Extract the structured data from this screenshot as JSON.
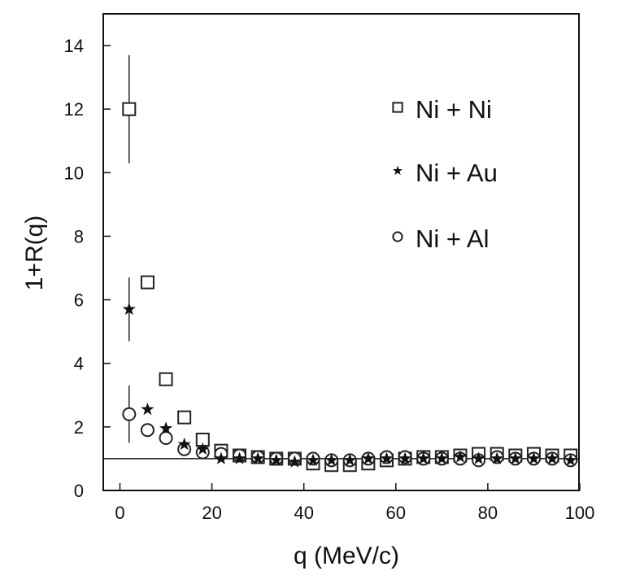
{
  "chart_data": {
    "type": "scatter",
    "xlabel": "q (MeV/c)",
    "ylabel": "1+R(q)",
    "xlim": [
      -5,
      100
    ],
    "ylim": [
      0,
      15
    ],
    "xticks": [
      "0",
      "20",
      "40",
      "60",
      "80",
      "100"
    ],
    "yticks": [
      "0",
      "2",
      "4",
      "6",
      "8",
      "10",
      "12",
      "14"
    ],
    "reference_line": 1,
    "legend_position": "top-right",
    "series": [
      {
        "name": "Ni + Ni",
        "marker": "square",
        "x": [
          2,
          6,
          10,
          14,
          18,
          22,
          26,
          30,
          34,
          38,
          42,
          46,
          50,
          54,
          58,
          62,
          66,
          70,
          74,
          78,
          82,
          86,
          90,
          94,
          98
        ],
        "y": [
          12.0,
          6.55,
          3.5,
          2.3,
          1.6,
          1.25,
          1.1,
          1.05,
          1.0,
          1.0,
          0.85,
          0.8,
          0.8,
          0.85,
          0.95,
          1.0,
          1.05,
          1.05,
          1.1,
          1.15,
          1.15,
          1.1,
          1.15,
          1.1,
          1.1
        ],
        "yerr": [
          1.7,
          0,
          0,
          0,
          0,
          0,
          0,
          0,
          0,
          0,
          0,
          0,
          0,
          0,
          0,
          0,
          0,
          0,
          0,
          0,
          0,
          0,
          0,
          0,
          0
        ]
      },
      {
        "name": "Ni + Au",
        "marker": "star",
        "x": [
          2,
          6,
          10,
          14,
          18,
          22,
          26,
          30,
          34,
          38,
          42,
          46,
          50,
          54,
          58,
          62,
          66,
          70,
          74,
          78,
          82,
          86,
          90,
          94,
          98
        ],
        "y": [
          5.7,
          2.55,
          1.95,
          1.45,
          1.3,
          1.0,
          1.0,
          1.0,
          0.95,
          0.9,
          0.95,
          0.95,
          0.95,
          1.0,
          1.0,
          1.0,
          1.0,
          1.0,
          1.05,
          1.0,
          1.0,
          1.0,
          1.0,
          1.0,
          0.95
        ],
        "yerr": [
          1.0,
          0,
          0,
          0,
          0,
          0,
          0,
          0,
          0,
          0,
          0,
          0,
          0,
          0,
          0,
          0,
          0,
          0,
          0,
          0,
          0,
          0,
          0,
          0,
          0
        ]
      },
      {
        "name": "Ni + Al",
        "marker": "circle",
        "x": [
          2,
          6,
          10,
          14,
          18,
          22,
          26,
          30,
          34,
          38,
          42,
          46,
          50,
          54,
          58,
          62,
          66,
          70,
          74,
          78,
          82,
          86,
          90,
          94,
          98
        ],
        "y": [
          2.4,
          1.9,
          1.65,
          1.3,
          1.2,
          1.15,
          1.1,
          1.05,
          1.0,
          1.0,
          1.0,
          0.95,
          0.95,
          1.0,
          1.05,
          1.05,
          1.0,
          1.0,
          1.0,
          0.95,
          1.05,
          1.0,
          1.0,
          1.0,
          0.95
        ],
        "yerr": [
          0.9,
          0,
          0,
          0,
          0,
          0,
          0,
          0,
          0,
          0,
          0,
          0,
          0,
          0,
          0,
          0,
          0,
          0,
          0,
          0,
          0,
          0,
          0,
          0,
          0
        ]
      }
    ]
  }
}
